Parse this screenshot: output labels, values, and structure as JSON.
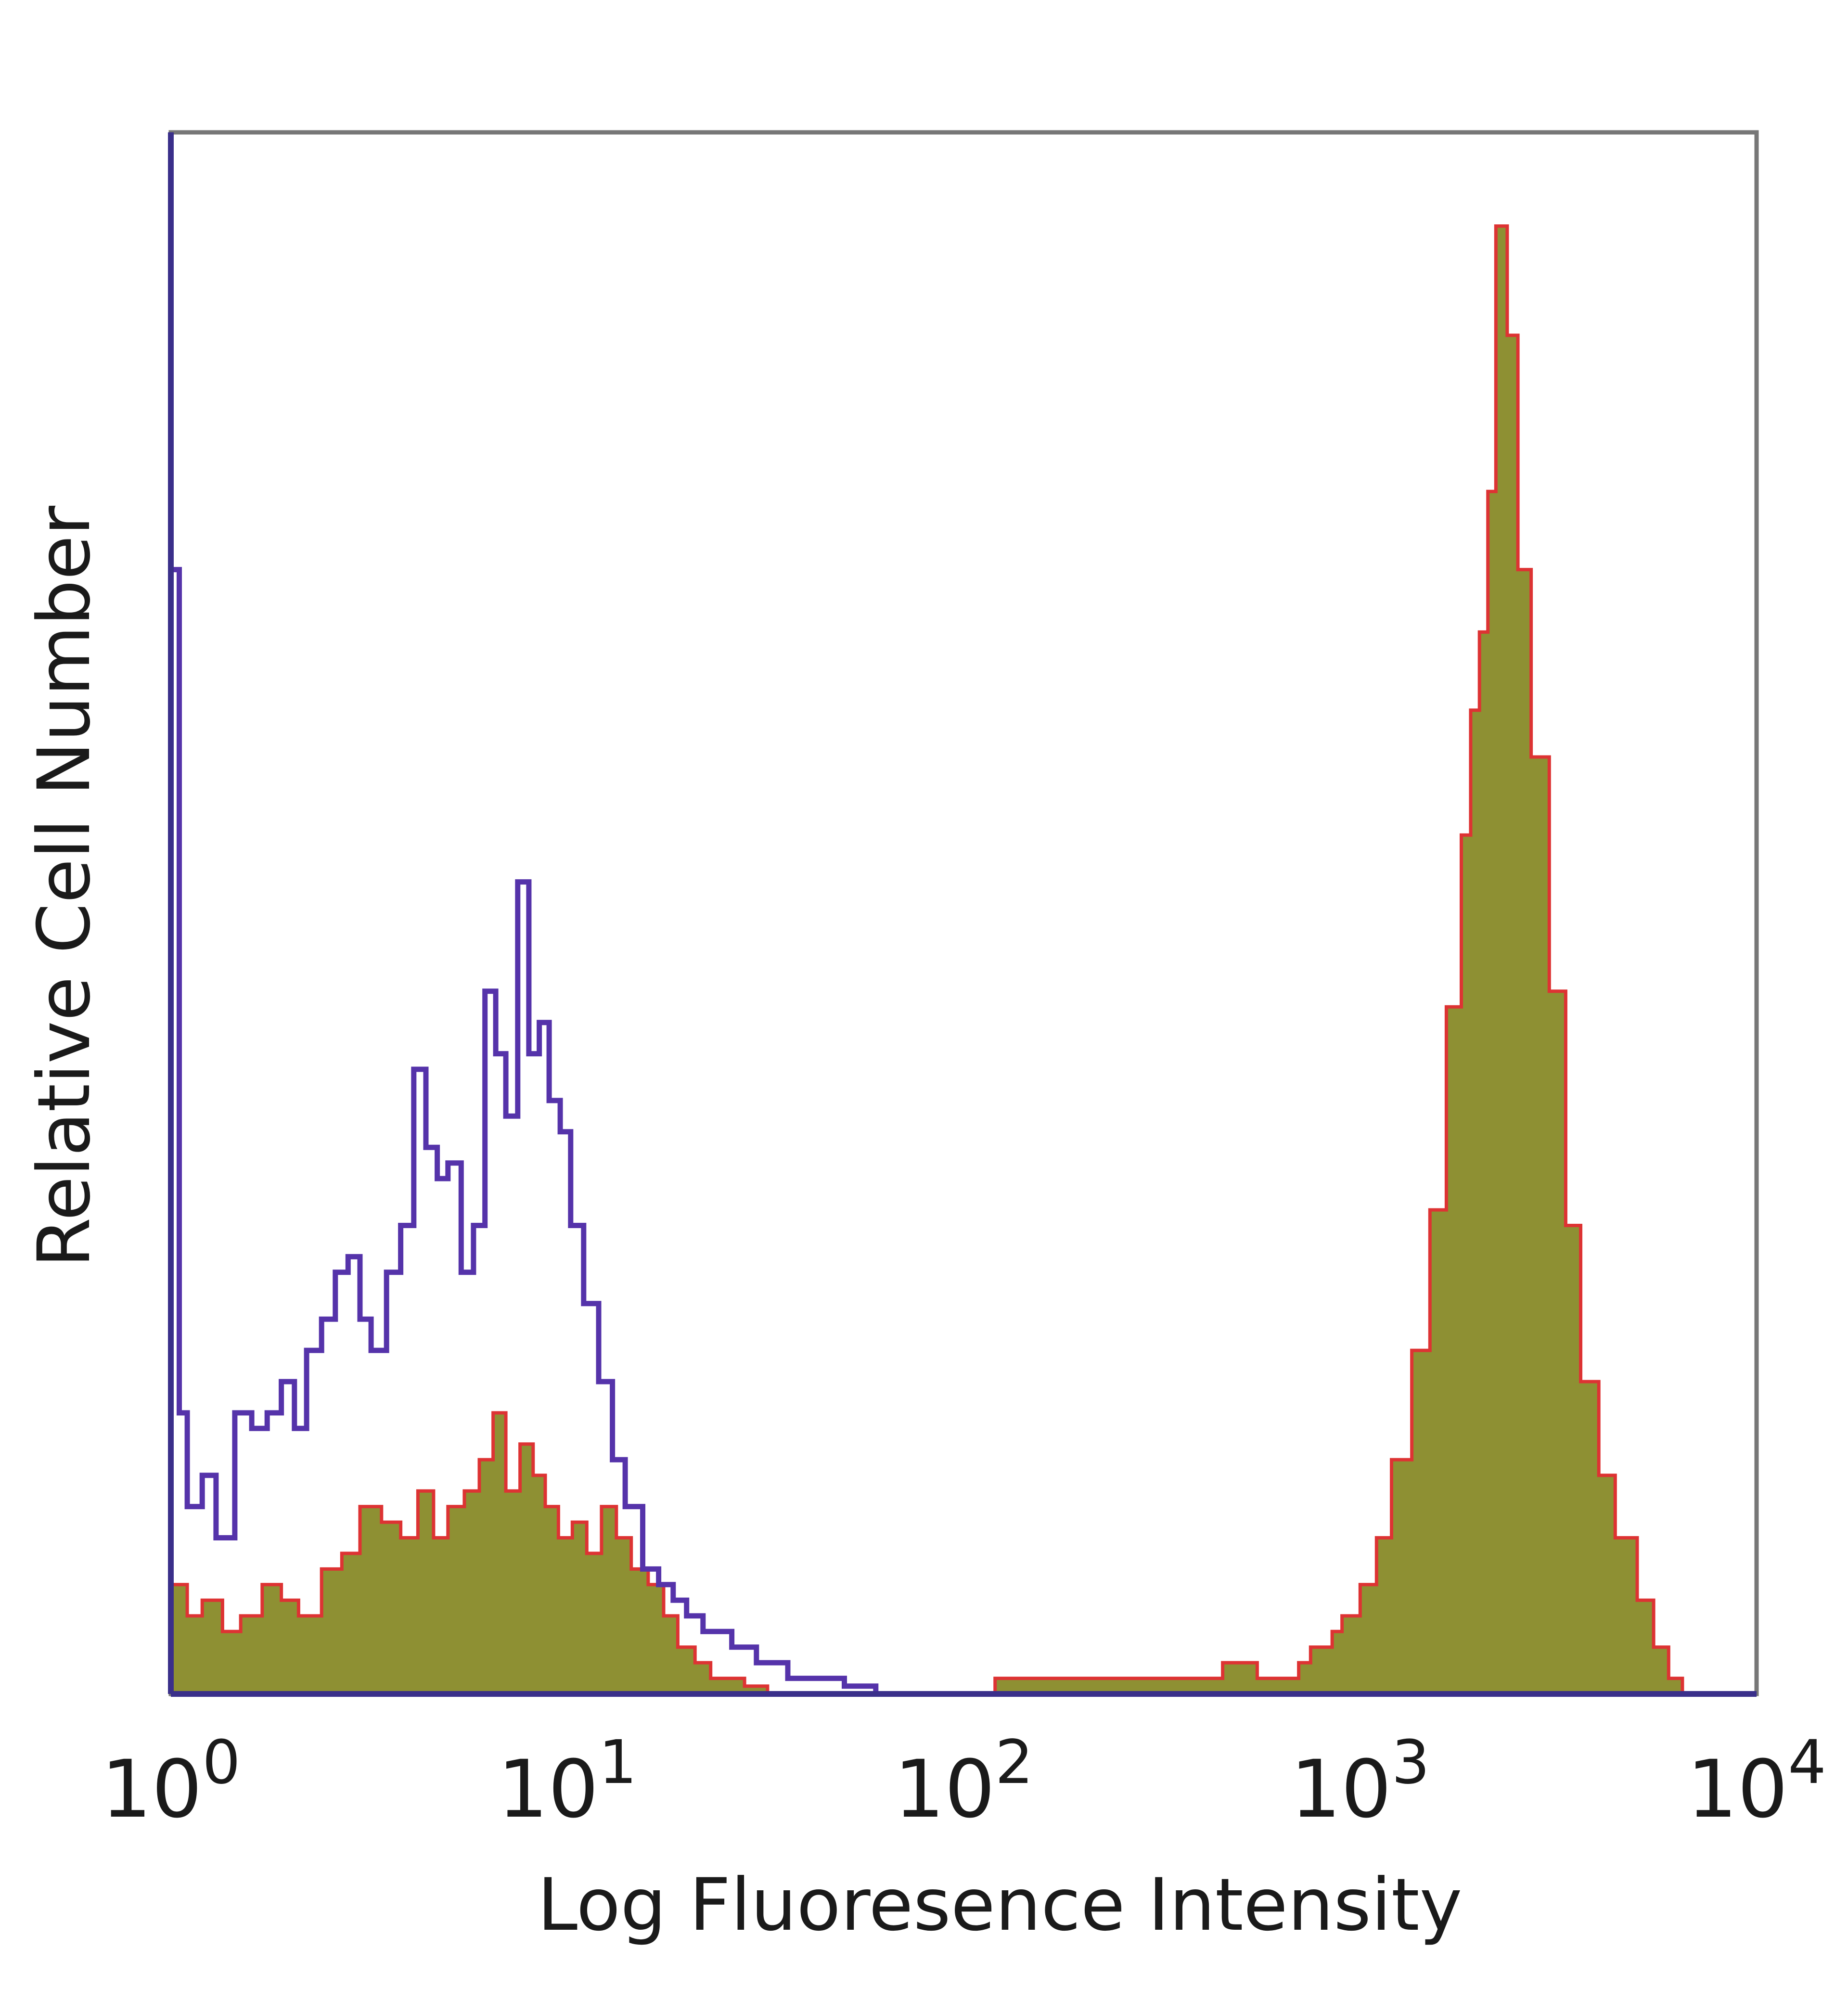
{
  "chart_data": {
    "type": "area",
    "title": "",
    "xlabel": "Log Fluoresence Intensity",
    "ylabel": "Relative Cell Number",
    "x_scale": "log",
    "xlim": [
      1,
      10000
    ],
    "ylim": [
      0,
      100
    ],
    "y_ticks_shown": false,
    "grid": false,
    "legend": "none",
    "x_ticks": [
      {
        "value": 1,
        "base": "10",
        "exp": "0"
      },
      {
        "value": 10,
        "base": "10",
        "exp": "1"
      },
      {
        "value": 100,
        "base": "10",
        "exp": "2"
      },
      {
        "value": 1000,
        "base": "10",
        "exp": "3"
      },
      {
        "value": 10000,
        "base": "10",
        "exp": "4"
      }
    ],
    "series": [
      {
        "style": "outline",
        "color": "#5533aa",
        "x": [
          1,
          1.05,
          1.1,
          1.2,
          1.3,
          1.45,
          1.6,
          1.75,
          1.9,
          2.05,
          2.2,
          2.4,
          2.6,
          2.8,
          3.0,
          3.2,
          3.5,
          3.8,
          4.1,
          4.4,
          4.7,
          5.0,
          5.4,
          5.8,
          6.2,
          6.6,
          7.0,
          7.5,
          8.0,
          8.5,
          9.0,
          9.6,
          10.2,
          11.0,
          12.0,
          13.0,
          14.0,
          15.5,
          17.0,
          18.5,
          20.0,
          22.0,
          24.0,
          26.0,
          28.0,
          30.0,
          33.0,
          36.0,
          40.0,
          45.0,
          50.0,
          60.0
        ],
        "y": [
          72,
          18,
          12,
          14,
          10,
          18,
          17,
          18,
          20,
          17,
          22,
          24,
          27,
          28,
          24,
          22,
          27,
          30,
          40,
          35,
          33,
          34,
          27,
          30,
          45,
          41,
          37,
          52,
          41,
          43,
          38,
          36,
          30,
          25,
          20,
          15,
          12,
          8,
          7,
          6,
          5,
          4,
          4,
          3,
          3,
          2,
          2,
          1,
          1,
          1,
          0.5,
          0
        ]
      },
      {
        "style": "filled",
        "color": "#8e9033",
        "outline": "#dd3333",
        "x": [
          1,
          1.1,
          1.2,
          1.35,
          1.5,
          1.7,
          1.9,
          2.1,
          2.4,
          2.7,
          3.0,
          3.4,
          3.8,
          4.2,
          4.6,
          5.0,
          5.5,
          6.0,
          6.5,
          7.0,
          7.6,
          8.2,
          8.8,
          9.5,
          10.3,
          11.2,
          12.2,
          13.3,
          14.5,
          16.0,
          17.5,
          19.0,
          21.0,
          23.0,
          25.0,
          28.0,
          32.0,
          100,
          120,
          150,
          250,
          350,
          450,
          550,
          650,
          700,
          750,
          800,
          850,
          900,
          1000,
          1100,
          1200,
          1350,
          1500,
          1650,
          1800,
          1900,
          2000,
          2100,
          2200,
          2350,
          2500,
          2700,
          3000,
          3300,
          3600,
          4000,
          4400,
          5000,
          5500,
          6000,
          6500
        ],
        "y": [
          7,
          5,
          6,
          4,
          5,
          7,
          6,
          5,
          8,
          9,
          12,
          11,
          10,
          13,
          10,
          12,
          13,
          15,
          18,
          13,
          16,
          14,
          12,
          10,
          11,
          9,
          12,
          10,
          8,
          7,
          5,
          3,
          2,
          1,
          1,
          0.5,
          0,
          0,
          1,
          1,
          1,
          1,
          2,
          1,
          1,
          2,
          3,
          3,
          4,
          5,
          7,
          10,
          15,
          22,
          31,
          44,
          55,
          63,
          68,
          77,
          94,
          87,
          72,
          60,
          45,
          30,
          20,
          14,
          10,
          6,
          3,
          1,
          0
        ]
      }
    ]
  }
}
